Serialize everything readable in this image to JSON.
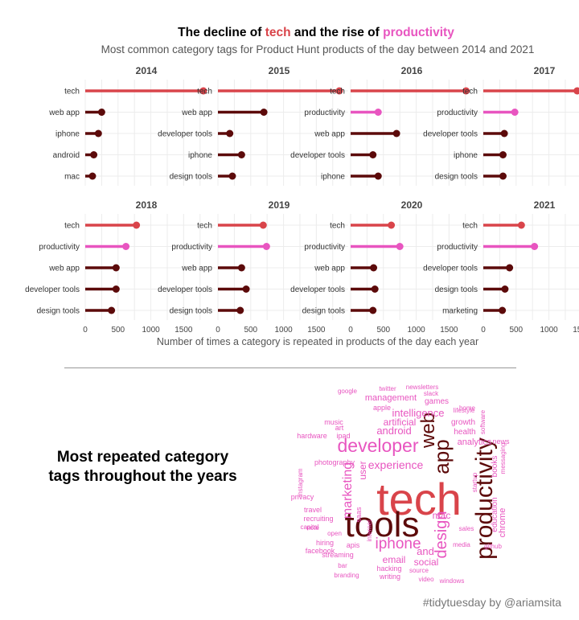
{
  "title": {
    "prefix": "The decline of ",
    "highlight1": "tech",
    "middle": " and the rise of ",
    "highlight2": "productivity"
  },
  "subtitle": "Most common category tags for Product Hunt products of the day between 2014 and 2021",
  "colors": {
    "tech": "#d9444a",
    "productivity": "#e855c0",
    "other": "#5c0a0a",
    "grid": "#ececec"
  },
  "chart_data": {
    "type": "lollipop",
    "xlabel": "Number of times a category is repeated in products of the day each year",
    "xlim": [
      0,
      1900
    ],
    "xticks": [
      0,
      500,
      1000,
      1500
    ],
    "grid": true,
    "panels": [
      {
        "year": "2014",
        "categories": [
          "tech",
          "web app",
          "iphone",
          "android",
          "mac"
        ],
        "values": [
          1800,
          250,
          200,
          130,
          110
        ]
      },
      {
        "year": "2015",
        "categories": [
          "tech",
          "web app",
          "developer tools",
          "iphone",
          "design tools"
        ],
        "values": [
          1850,
          700,
          180,
          360,
          220
        ]
      },
      {
        "year": "2016",
        "categories": [
          "tech",
          "productivity",
          "web app",
          "developer tools",
          "iphone"
        ],
        "values": [
          1760,
          420,
          700,
          340,
          420
        ]
      },
      {
        "year": "2017",
        "categories": [
          "tech",
          "productivity",
          "developer tools",
          "iphone",
          "design tools"
        ],
        "values": [
          1430,
          480,
          320,
          300,
          300
        ]
      },
      {
        "year": "2018",
        "categories": [
          "tech",
          "productivity",
          "web app",
          "developer tools",
          "design tools"
        ],
        "values": [
          780,
          620,
          470,
          470,
          400
        ]
      },
      {
        "year": "2019",
        "categories": [
          "tech",
          "productivity",
          "web app",
          "developer tools",
          "design tools"
        ],
        "values": [
          690,
          740,
          360,
          430,
          340
        ]
      },
      {
        "year": "2020",
        "categories": [
          "tech",
          "productivity",
          "web app",
          "developer tools",
          "design tools"
        ],
        "values": [
          620,
          750,
          350,
          370,
          340
        ]
      },
      {
        "year": "2021",
        "categories": [
          "tech",
          "productivity",
          "developer tools",
          "design tools",
          "marketing"
        ],
        "values": [
          580,
          780,
          400,
          330,
          290
        ]
      }
    ]
  },
  "cloud_heading": "Most repeated category tags throughout the years",
  "wordcloud": {
    "words": [
      {
        "text": "tech",
        "size": 56,
        "color": "#d9444a"
      },
      {
        "text": "tools",
        "size": 44,
        "color": "#5c0a0a"
      },
      {
        "text": "productivity",
        "size": 30,
        "color": "#5c0a0a",
        "vertical": true
      },
      {
        "text": "developer",
        "size": 23,
        "color": "#e855c0"
      },
      {
        "text": "app",
        "size": 26,
        "color": "#5c0a0a",
        "vertical": true
      },
      {
        "text": "web",
        "size": 24,
        "color": "#5c0a0a",
        "vertical": true
      },
      {
        "text": "design",
        "size": 20,
        "color": "#e855c0",
        "vertical": true
      },
      {
        "text": "iphone",
        "size": 19,
        "color": "#e855c0"
      },
      {
        "text": "marketing",
        "size": 16,
        "color": "#e855c0",
        "vertical": true
      },
      {
        "text": "experience",
        "size": 14,
        "color": "#e855c0"
      },
      {
        "text": "intelligence",
        "size": 13,
        "color": "#e855c0"
      },
      {
        "text": "android",
        "size": 13,
        "color": "#e855c0"
      },
      {
        "text": "artificial",
        "size": 12,
        "color": "#e855c0"
      },
      {
        "text": "user",
        "size": 12,
        "color": "#e855c0",
        "vertical": true
      },
      {
        "text": "management",
        "size": 11,
        "color": "#e855c0"
      },
      {
        "text": "analytics",
        "size": 11,
        "color": "#e855c0"
      },
      {
        "text": "and",
        "size": 13,
        "color": "#e855c0"
      },
      {
        "text": "mac",
        "size": 12,
        "color": "#e855c0"
      },
      {
        "text": "email",
        "size": 12,
        "color": "#e855c0"
      },
      {
        "text": "social",
        "size": 12,
        "color": "#e855c0"
      },
      {
        "text": "chrome",
        "size": 11,
        "color": "#e855c0",
        "vertical": true
      },
      {
        "text": "education",
        "size": 10,
        "color": "#e855c0",
        "vertical": true
      },
      {
        "text": "books",
        "size": 10,
        "color": "#e855c0",
        "vertical": true
      },
      {
        "text": "games",
        "size": 10,
        "color": "#e855c0"
      },
      {
        "text": "growth",
        "size": 10,
        "color": "#e855c0"
      },
      {
        "text": "health",
        "size": 10,
        "color": "#e855c0"
      },
      {
        "text": "news",
        "size": 9,
        "color": "#e855c0"
      },
      {
        "text": "hardware",
        "size": 9,
        "color": "#e855c0"
      },
      {
        "text": "ipad",
        "size": 9,
        "color": "#e855c0"
      },
      {
        "text": "photography",
        "size": 9,
        "color": "#e855c0"
      },
      {
        "text": "privacy",
        "size": 9,
        "color": "#e855c0"
      },
      {
        "text": "recruiting",
        "size": 9,
        "color": "#e855c0"
      },
      {
        "text": "travel",
        "size": 9,
        "color": "#e855c0"
      },
      {
        "text": "apis",
        "size": 9,
        "color": "#e855c0"
      },
      {
        "text": "hiring",
        "size": 9,
        "color": "#e855c0"
      },
      {
        "text": "streaming",
        "size": 9,
        "color": "#e855c0"
      },
      {
        "text": "facebook",
        "size": 9,
        "color": "#e855c0"
      },
      {
        "text": "hacking",
        "size": 9,
        "color": "#e855c0"
      },
      {
        "text": "writing",
        "size": 9,
        "color": "#e855c0"
      },
      {
        "text": "music",
        "size": 9,
        "color": "#e855c0"
      },
      {
        "text": "art",
        "size": 9,
        "color": "#e855c0"
      },
      {
        "text": "google",
        "size": 8,
        "color": "#e855c0"
      },
      {
        "text": "apple",
        "size": 9,
        "color": "#e855c0"
      },
      {
        "text": "slack",
        "size": 8,
        "color": "#e855c0"
      },
      {
        "text": "twitter",
        "size": 8,
        "color": "#e855c0"
      },
      {
        "text": "newsletters",
        "size": 8,
        "color": "#e855c0"
      },
      {
        "text": "lifestyle",
        "size": 8,
        "color": "#e855c0"
      },
      {
        "text": "home",
        "size": 8,
        "color": "#e855c0"
      },
      {
        "text": "sales",
        "size": 8,
        "color": "#e855c0"
      },
      {
        "text": "media",
        "size": 8,
        "color": "#e855c0"
      },
      {
        "text": "bar",
        "size": 8,
        "color": "#e855c0"
      },
      {
        "text": "video",
        "size": 8,
        "color": "#e855c0"
      },
      {
        "text": "windows",
        "size": 8,
        "color": "#e855c0"
      },
      {
        "text": "branding",
        "size": 8,
        "color": "#e855c0"
      },
      {
        "text": "source",
        "size": 8,
        "color": "#e855c0"
      },
      {
        "text": "open",
        "size": 8,
        "color": "#e855c0"
      },
      {
        "text": "capital",
        "size": 8,
        "color": "#e855c0"
      },
      {
        "text": "note",
        "size": 8,
        "color": "#e855c0"
      },
      {
        "text": "github",
        "size": 8,
        "color": "#e855c0"
      },
      {
        "text": "messaging",
        "size": 8,
        "color": "#e855c0",
        "vertical": true
      },
      {
        "text": "startup",
        "size": 8,
        "color": "#e855c0",
        "vertical": true
      },
      {
        "text": "software",
        "size": 8,
        "color": "#e855c0",
        "vertical": true
      },
      {
        "text": "instagram",
        "size": 8,
        "color": "#e855c0",
        "vertical": true
      },
      {
        "text": "saas",
        "size": 9,
        "color": "#e855c0",
        "vertical": true
      },
      {
        "text": "internet",
        "size": 8,
        "color": "#e855c0",
        "vertical": true
      }
    ]
  },
  "caption": "#tidytuesday by @ariamsita"
}
